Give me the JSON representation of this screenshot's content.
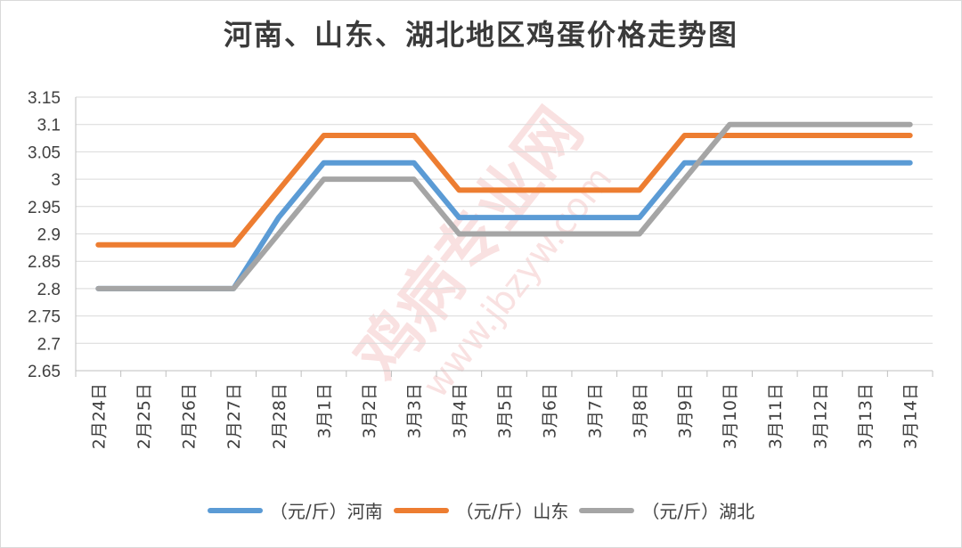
{
  "chart_data": {
    "type": "line",
    "title": "河南、山东、湖北地区鸡蛋价格走势图",
    "categories": [
      "2月24日",
      "2月25日",
      "2月26日",
      "2月27日",
      "2月28日",
      "3月1日",
      "3月2日",
      "3月3日",
      "3月4日",
      "3月5日",
      "3月6日",
      "3月7日",
      "3月8日",
      "3月9日",
      "3月10日",
      "3月11日",
      "3月12日",
      "3月13日",
      "3月14日"
    ],
    "series": [
      {
        "name": "（元/斤）河南",
        "color": "#5b9bd5",
        "values": [
          2.8,
          2.8,
          2.8,
          2.8,
          2.93,
          3.03,
          3.03,
          3.03,
          2.93,
          2.93,
          2.93,
          2.93,
          2.93,
          3.03,
          3.03,
          3.03,
          3.03,
          3.03,
          3.03
        ]
      },
      {
        "name": "（元/斤）山东",
        "color": "#ed7d31",
        "values": [
          2.88,
          2.88,
          2.88,
          2.88,
          2.98,
          3.08,
          3.08,
          3.08,
          2.98,
          2.98,
          2.98,
          2.98,
          2.98,
          3.08,
          3.08,
          3.08,
          3.08,
          3.08,
          3.08
        ]
      },
      {
        "name": "（元/斤）湖北",
        "color": "#a5a5a5",
        "values": [
          2.8,
          2.8,
          2.8,
          2.8,
          2.9,
          3.0,
          3.0,
          3.0,
          2.9,
          2.9,
          2.9,
          2.9,
          2.9,
          3.0,
          3.1,
          3.1,
          3.1,
          3.1,
          3.1
        ]
      }
    ],
    "ylim": [
      2.65,
      3.15
    ],
    "yticks": [
      "3.15",
      "3.1",
      "3.05",
      "3",
      "2.95",
      "2.9",
      "2.85",
      "2.8",
      "2.75",
      "2.7",
      "2.65"
    ],
    "xlabel": "",
    "ylabel": "",
    "grid": true,
    "legend_position": "bottom"
  },
  "watermark": {
    "text": "鸡病专业网",
    "url": "www.jbzyw.com"
  }
}
